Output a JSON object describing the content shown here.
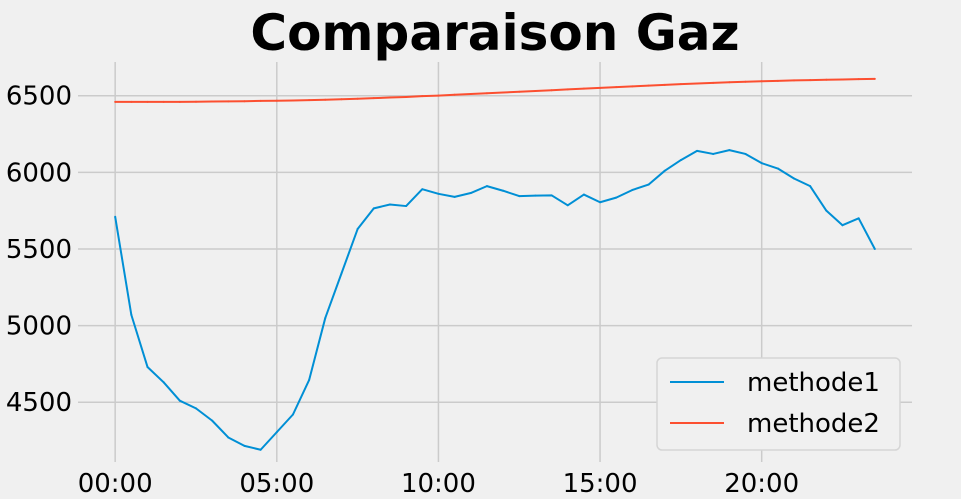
{
  "chart_data": {
    "type": "line",
    "title": "Comparaison Gaz",
    "xlabel": "",
    "ylabel": "",
    "x_ticks": [
      "00:00",
      "05:00",
      "10:00",
      "15:00",
      "20:00"
    ],
    "y_ticks": [
      4500,
      5000,
      5500,
      6000,
      6500
    ],
    "xlim_hours": [
      -1.15,
      24.65
    ],
    "ylim": [
      4110,
      6720
    ],
    "grid": true,
    "legend_position": "lower right",
    "x_hours": [
      0,
      0.5,
      1,
      1.5,
      2,
      2.5,
      3,
      3.5,
      4,
      4.5,
      5,
      5.5,
      6,
      6.5,
      7,
      7.5,
      8,
      8.5,
      9,
      9.5,
      10,
      10.5,
      11,
      11.5,
      12,
      12.5,
      13,
      13.5,
      14,
      14.5,
      15,
      15.5,
      16,
      16.5,
      17,
      17.5,
      18,
      18.5,
      19,
      19.5,
      20,
      20.5,
      21,
      21.5,
      22,
      22.5,
      23,
      23.5
    ],
    "series": [
      {
        "name": "methode1",
        "color": "#008fd5",
        "values": [
          5710,
          5070,
          4730,
          4630,
          4510,
          4460,
          4380,
          4270,
          4215,
          4190,
          4305,
          4420,
          4645,
          5050,
          5340,
          5630,
          5765,
          5790,
          5780,
          5890,
          5860,
          5840,
          5865,
          5910,
          5880,
          5845,
          5848,
          5850,
          5785,
          5855,
          5805,
          5835,
          5885,
          5920,
          6010,
          6080,
          6140,
          6120,
          6145,
          6120,
          6060,
          6025,
          5960,
          5910,
          5750,
          5655,
          5700,
          5500
        ]
      },
      {
        "name": "methode2",
        "color": "#fc4f30",
        "values": [
          6460,
          6460,
          6460,
          6460,
          6460,
          6461,
          6462,
          6463,
          6464,
          6466,
          6467,
          6469,
          6471,
          6474,
          6477,
          6480,
          6484,
          6488,
          6492,
          6497,
          6501,
          6506,
          6511,
          6516,
          6521,
          6526,
          6531,
          6536,
          6541,
          6546,
          6551,
          6556,
          6561,
          6566,
          6571,
          6576,
          6580,
          6584,
          6588,
          6591,
          6594,
          6597,
          6600,
          6602,
          6604,
          6606,
          6608,
          6610
        ]
      }
    ]
  }
}
